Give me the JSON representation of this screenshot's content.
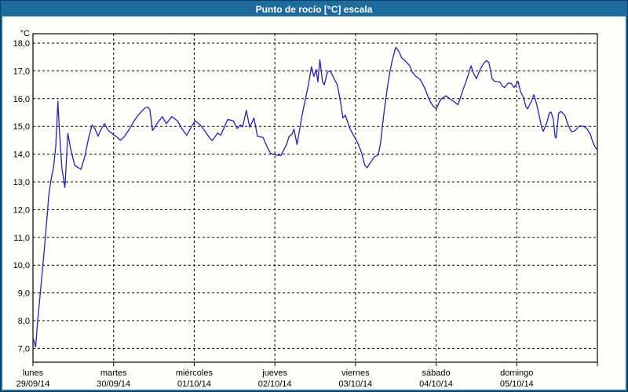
{
  "window": {
    "title": "Punto de rocío [°C] escala",
    "title_bar_color": "#1e6b9e",
    "border_outer_color": "#0e3e63",
    "paper_color": "#fffffa"
  },
  "chart_data": {
    "type": "line",
    "title": "Punto de rocío [°C] escala",
    "unit_label": "°C",
    "line_color": "#2020c8",
    "grid": "dashed-black",
    "legend": "none",
    "x_axis": {
      "unit": "hours since 29/09/14 00:00",
      "xlim": [
        0,
        168
      ],
      "day_width_hours": 24
    },
    "ylim": [
      6.5,
      18.35
    ],
    "y_ticks": [
      {
        "value": 18,
        "label": "18,0"
      },
      {
        "value": 17,
        "label": "17,0"
      },
      {
        "value": 16,
        "label": "16,0"
      },
      {
        "value": 15,
        "label": "15,0"
      },
      {
        "value": 14,
        "label": "14,0"
      },
      {
        "value": 13,
        "label": "13,0"
      },
      {
        "value": 12,
        "label": "12,0"
      },
      {
        "value": 11,
        "label": "11,0"
      },
      {
        "value": 10,
        "label": "10,0"
      },
      {
        "value": 9,
        "label": "9,0"
      },
      {
        "value": 8,
        "label": "8,0"
      },
      {
        "value": 7,
        "label": "7,0"
      }
    ],
    "x_days": [
      {
        "name": "lunes",
        "date": "29/09/14"
      },
      {
        "name": "martes",
        "date": "30/09/14"
      },
      {
        "name": "miércoles",
        "date": "01/10/14"
      },
      {
        "name": "jueves",
        "date": "02/10/14"
      },
      {
        "name": "viernes",
        "date": "03/10/14"
      },
      {
        "name": "sábado",
        "date": "04/10/14"
      },
      {
        "name": "domingo",
        "date": "05/10/14"
      }
    ],
    "series": [
      {
        "name": "Punto de rocío",
        "points": [
          [
            0,
            7.4
          ],
          [
            0.8,
            7.05
          ],
          [
            1.4,
            8.0
          ],
          [
            2.8,
            9.8
          ],
          [
            3.7,
            11.0
          ],
          [
            4.7,
            12.5
          ],
          [
            5.4,
            13.1
          ],
          [
            6.1,
            13.5
          ],
          [
            6.8,
            14.3
          ],
          [
            7.4,
            15.9
          ],
          [
            7.9,
            14.8
          ],
          [
            8.6,
            13.5
          ],
          [
            9.5,
            12.8
          ],
          [
            10.4,
            14.75
          ],
          [
            11.2,
            14.2
          ],
          [
            12.4,
            13.6
          ],
          [
            14.3,
            13.45
          ],
          [
            15.4,
            13.9
          ],
          [
            16.6,
            14.6
          ],
          [
            17.6,
            15.05
          ],
          [
            18.5,
            14.9
          ],
          [
            19.4,
            14.65
          ],
          [
            20.3,
            14.9
          ],
          [
            21.3,
            15.1
          ],
          [
            22.4,
            14.85
          ],
          [
            24.0,
            14.7
          ],
          [
            25.2,
            14.6
          ],
          [
            26.0,
            14.5
          ],
          [
            27.1,
            14.62
          ],
          [
            28.7,
            14.9
          ],
          [
            29.9,
            15.16
          ],
          [
            31.3,
            15.4
          ],
          [
            33.2,
            15.65
          ],
          [
            34.1,
            15.7
          ],
          [
            34.8,
            15.6
          ],
          [
            35.6,
            14.85
          ],
          [
            36.9,
            15.1
          ],
          [
            38.5,
            15.35
          ],
          [
            39.7,
            15.1
          ],
          [
            41.3,
            15.35
          ],
          [
            43.0,
            15.2
          ],
          [
            44.4,
            14.9
          ],
          [
            45.8,
            14.68
          ],
          [
            47.2,
            15.0
          ],
          [
            48.3,
            15.2
          ],
          [
            49.8,
            15.05
          ],
          [
            50.9,
            14.88
          ],
          [
            52.8,
            14.55
          ],
          [
            53.4,
            14.48
          ],
          [
            54.9,
            14.76
          ],
          [
            55.9,
            14.68
          ],
          [
            58.0,
            15.25
          ],
          [
            59.6,
            15.2
          ],
          [
            60.8,
            14.92
          ],
          [
            61.7,
            15.05
          ],
          [
            62.4,
            14.98
          ],
          [
            63.5,
            15.58
          ],
          [
            64.5,
            14.97
          ],
          [
            65.8,
            15.3
          ],
          [
            66.8,
            14.64
          ],
          [
            68.5,
            14.6
          ],
          [
            69.9,
            14.2
          ],
          [
            70.8,
            14.02
          ],
          [
            72.4,
            13.97
          ],
          [
            73.8,
            13.95
          ],
          [
            75.5,
            14.35
          ],
          [
            76.2,
            14.63
          ],
          [
            77.1,
            14.72
          ],
          [
            77.7,
            14.9
          ],
          [
            78.6,
            14.35
          ],
          [
            80.1,
            15.4
          ],
          [
            81.3,
            16.1
          ],
          [
            82.0,
            16.5
          ],
          [
            82.9,
            17.15
          ],
          [
            83.6,
            16.8
          ],
          [
            84.3,
            17.05
          ],
          [
            84.8,
            16.6
          ],
          [
            85.4,
            17.4
          ],
          [
            86.2,
            16.6
          ],
          [
            86.7,
            16.5
          ],
          [
            87.6,
            16.95
          ],
          [
            88.5,
            17.0
          ],
          [
            89.9,
            16.65
          ],
          [
            90.6,
            16.5
          ],
          [
            91.6,
            15.85
          ],
          [
            92.3,
            15.3
          ],
          [
            93.0,
            15.4
          ],
          [
            93.7,
            15.15
          ],
          [
            94.4,
            14.9
          ],
          [
            95.3,
            14.7
          ],
          [
            96.5,
            14.45
          ],
          [
            97.7,
            14.1
          ],
          [
            98.8,
            13.6
          ],
          [
            99.5,
            13.51
          ],
          [
            100.5,
            13.7
          ],
          [
            101.6,
            13.9
          ],
          [
            102.8,
            13.98
          ],
          [
            103.5,
            14.45
          ],
          [
            104.0,
            15.0
          ],
          [
            104.7,
            15.7
          ],
          [
            105.5,
            16.4
          ],
          [
            106.3,
            17.0
          ],
          [
            107.0,
            17.4
          ],
          [
            108.0,
            17.85
          ],
          [
            108.9,
            17.7
          ],
          [
            109.8,
            17.46
          ],
          [
            110.5,
            17.4
          ],
          [
            111.3,
            17.3
          ],
          [
            112.2,
            17.17
          ],
          [
            112.9,
            16.95
          ],
          [
            114.0,
            16.8
          ],
          [
            115.2,
            16.7
          ],
          [
            115.9,
            16.55
          ],
          [
            116.8,
            16.33
          ],
          [
            117.5,
            16.1
          ],
          [
            118.4,
            15.86
          ],
          [
            119.2,
            15.72
          ],
          [
            120.1,
            15.63
          ],
          [
            121.0,
            15.9
          ],
          [
            121.7,
            16.0
          ],
          [
            122.9,
            16.1
          ],
          [
            124.0,
            16.0
          ],
          [
            125.7,
            15.86
          ],
          [
            126.5,
            15.78
          ],
          [
            128.4,
            16.45
          ],
          [
            129.6,
            16.87
          ],
          [
            130.4,
            17.18
          ],
          [
            131.1,
            16.92
          ],
          [
            132.0,
            16.72
          ],
          [
            133.1,
            17.05
          ],
          [
            134.3,
            17.3
          ],
          [
            135.0,
            17.37
          ],
          [
            135.7,
            17.3
          ],
          [
            136.7,
            16.72
          ],
          [
            137.4,
            16.62
          ],
          [
            139.0,
            16.6
          ],
          [
            139.7,
            16.45
          ],
          [
            140.4,
            16.4
          ],
          [
            141.4,
            16.56
          ],
          [
            142.3,
            16.55
          ],
          [
            143.2,
            16.4
          ],
          [
            144.4,
            16.62
          ],
          [
            145.1,
            16.25
          ],
          [
            146.0,
            16.05
          ],
          [
            146.7,
            15.72
          ],
          [
            147.2,
            15.63
          ],
          [
            148.4,
            15.91
          ],
          [
            149.1,
            16.14
          ],
          [
            149.8,
            15.86
          ],
          [
            150.7,
            15.38
          ],
          [
            151.4,
            14.96
          ],
          [
            151.9,
            14.82
          ],
          [
            153.0,
            15.15
          ],
          [
            153.7,
            15.48
          ],
          [
            154.2,
            15.52
          ],
          [
            154.9,
            15.25
          ],
          [
            155.4,
            14.63
          ],
          [
            155.7,
            14.58
          ],
          [
            156.5,
            15.48
          ],
          [
            157.2,
            15.54
          ],
          [
            158.4,
            15.38
          ],
          [
            159.1,
            15.1
          ],
          [
            160.0,
            14.87
          ],
          [
            160.4,
            14.8
          ],
          [
            161.4,
            14.85
          ],
          [
            162.6,
            15.02
          ],
          [
            164.0,
            15.0
          ],
          [
            164.9,
            14.91
          ],
          [
            165.9,
            14.72
          ],
          [
            166.6,
            14.45
          ],
          [
            167.3,
            14.26
          ],
          [
            168.0,
            14.15
          ]
        ]
      }
    ]
  }
}
